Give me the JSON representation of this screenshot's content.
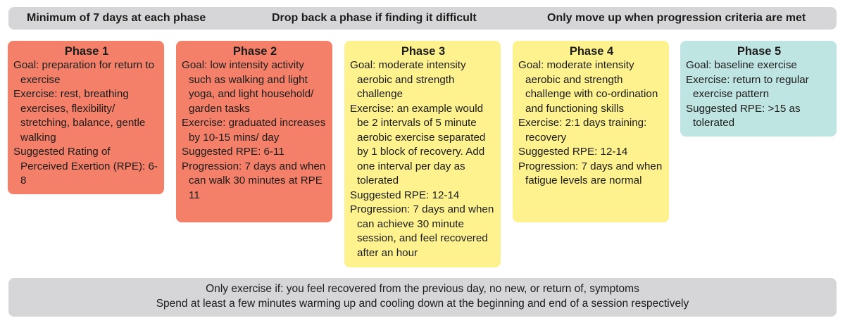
{
  "header": {
    "rule1": "Minimum of 7 days at each phase",
    "rule2": "Drop back a phase if finding it difficult",
    "rule3": "Only move up when progression criteria are met"
  },
  "phases": [
    {
      "title": "Phase 1",
      "color": "#f4806a",
      "items": [
        "Goal: preparation for return to exercise",
        "Exercise: rest, breathing exercises, flexibility/ stretching, balance, gentle walking",
        "Suggested Rating of Perceived Exertion (RPE): 6-8"
      ]
    },
    {
      "title": "Phase 2",
      "color": "#f4806a",
      "items": [
        "Goal: low intensity activity such as walking and light yoga, and light household/ garden tasks",
        "Exercise: graduated increases by 10-15 mins/ day",
        "Suggested RPE: 6-11",
        "Progression: 7 days and when can walk 30 minutes at RPE 11"
      ]
    },
    {
      "title": "Phase 3",
      "color": "#fef28e",
      "items": [
        "Goal: moderate intensity aerobic and strength challenge",
        "Exercise: an example would be 2 intervals of 5 minute aerobic exercise separated by 1 block of recovery. Add one interval per day as tolerated",
        "Suggested RPE: 12-14",
        "Progression: 7 days and when can achieve 30 minute session, and feel recovered after an hour"
      ]
    },
    {
      "title": "Phase 4",
      "color": "#fef28e",
      "items": [
        "Goal: moderate intensity aerobic and strength challenge with co-ordination and functioning skills",
        "Exercise: 2:1 days training: recovery",
        "Suggested RPE: 12-14",
        "Progression: 7 days and when fatigue levels are normal"
      ]
    },
    {
      "title": "Phase 5",
      "color": "#bfe5e3",
      "items": [
        "Goal: baseline exercise",
        "Exercise: return to regular exercise pattern",
        "Suggested RPE: >15 as tolerated"
      ]
    }
  ],
  "footer": {
    "line1": "Only exercise if: you feel recovered from the previous day, no new, or return of, symptoms",
    "line2": "Spend at least a few minutes warming up and cooling down at the beginning and end of a session respectively"
  }
}
